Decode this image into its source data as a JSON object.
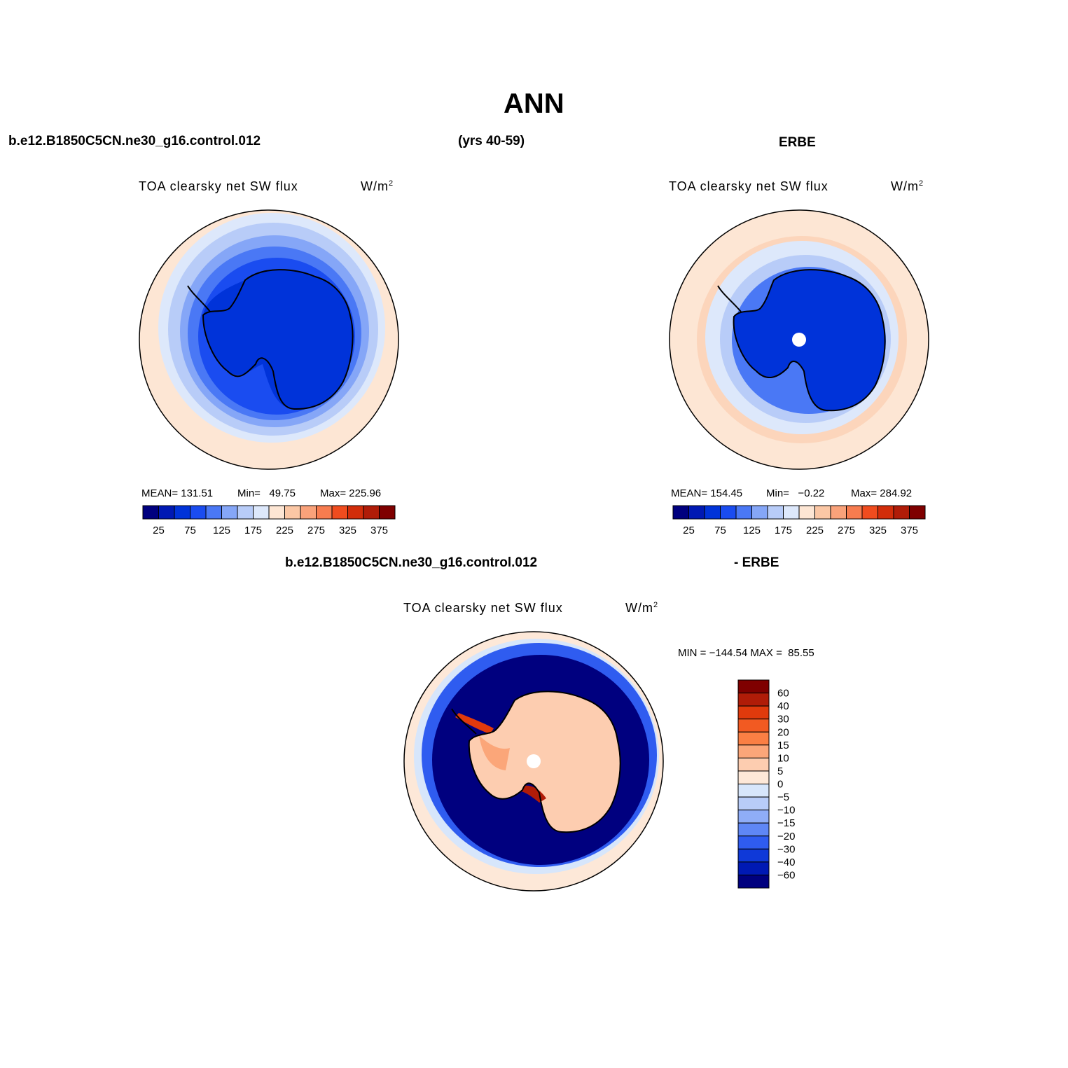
{
  "figure": {
    "title": "ANN",
    "case_name": "b.e12.B1850C5CN.ne30_g16.control.012",
    "years": "(yrs 40-59)",
    "obs_name": "ERBE",
    "diff_case_name": "b.e12.B1850C5CN.ne30_g16.control.012",
    "diff_obs_name": "- ERBE"
  },
  "panels": [
    {
      "variable": "TOA clearsky net SW flux",
      "units_base": "W/m",
      "units_exp": "2",
      "stats": {
        "mean": "MEAN= 131.51",
        "min": "Min=   49.75",
        "max": "Max= 225.96"
      },
      "colorbar_ticks": [
        "25",
        "75",
        "125",
        "175",
        "225",
        "275",
        "325",
        "375"
      ]
    },
    {
      "variable": "TOA clearsky net SW flux",
      "units_base": "W/m",
      "units_exp": "2",
      "stats": {
        "mean": "MEAN= 154.45",
        "min": "Min=   −0.22",
        "max": "Max= 284.92"
      },
      "colorbar_ticks": [
        "25",
        "75",
        "125",
        "175",
        "225",
        "275",
        "325",
        "375"
      ]
    },
    {
      "variable": "TOA clearsky net SW flux",
      "units_base": "W/m",
      "units_exp": "2",
      "stats": {
        "minmax": "MIN = −144.54 MAX =  85.55"
      },
      "colorbar_ticks": [
        "60",
        "40",
        "30",
        "20",
        "15",
        "10",
        "5",
        "0",
        "−5",
        "−10",
        "−15",
        "−20",
        "−30",
        "−40",
        "−60"
      ]
    }
  ],
  "colors": {
    "abs_scale": [
      "#00007f",
      "#0019b4",
      "#0033d9",
      "#1a4cf0",
      "#4a78f5",
      "#85a6f7",
      "#b8ccf8",
      "#dde8fb",
      "#fde6d4",
      "#fbc7a5",
      "#f9a27a",
      "#f77c4f",
      "#f04c1e",
      "#d22d0a",
      "#b01c08",
      "#7f0000"
    ],
    "diff_scale": [
      "#7f0000",
      "#b01c08",
      "#e03a0c",
      "#f25a22",
      "#fa7f44",
      "#fba679",
      "#fdcdb0",
      "#fde8d8",
      "#d7e6fb",
      "#b8ccf8",
      "#8fadf7",
      "#5f87f5",
      "#2f5cf0",
      "#0f39d8",
      "#0019b4",
      "#00007f"
    ]
  }
}
